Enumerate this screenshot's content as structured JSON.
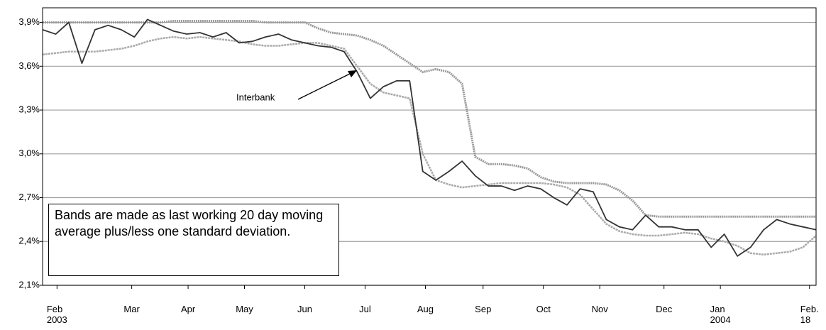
{
  "chart_data": {
    "type": "line",
    "ylim": [
      2.1,
      4.0
    ],
    "yticks": [
      {
        "value": 2.1,
        "label": "2,1%"
      },
      {
        "value": 2.4,
        "label": "2,4%"
      },
      {
        "value": 2.7,
        "label": "2,7%"
      },
      {
        "value": 3.0,
        "label": "3,0%"
      },
      {
        "value": 3.3,
        "label": "3,3%"
      },
      {
        "value": 3.6,
        "label": "3,6%"
      },
      {
        "value": 3.9,
        "label": "3,9%"
      }
    ],
    "xlim": [
      0,
      59
    ],
    "xticks": [
      {
        "value": 1.1,
        "label": "Feb\n2003"
      },
      {
        "value": 6.8,
        "label": "Mar"
      },
      {
        "value": 11.1,
        "label": "Apr"
      },
      {
        "value": 15.4,
        "label": "May"
      },
      {
        "value": 20.0,
        "label": "Jun"
      },
      {
        "value": 24.6,
        "label": "Jul"
      },
      {
        "value": 29.2,
        "label": "Aug"
      },
      {
        "value": 33.6,
        "label": "Sep"
      },
      {
        "value": 38.2,
        "label": "Oct"
      },
      {
        "value": 42.5,
        "label": "Nov"
      },
      {
        "value": 47.4,
        "label": "Dec"
      },
      {
        "value": 51.7,
        "label": "Jan\n2004"
      },
      {
        "value": 58.5,
        "label": "Feb. 18"
      }
    ],
    "grid": true,
    "annotation": "Bands are made as last working 20 day moving average plus/less one standard deviation.",
    "series": [
      {
        "name": "Interbank",
        "color": "#333333",
        "values": [
          3.85,
          3.82,
          3.9,
          3.62,
          3.85,
          3.88,
          3.85,
          3.8,
          3.92,
          3.88,
          3.84,
          3.82,
          3.83,
          3.8,
          3.83,
          3.76,
          3.77,
          3.8,
          3.82,
          3.78,
          3.76,
          3.74,
          3.73,
          3.7,
          3.56,
          3.38,
          3.46,
          3.5,
          3.5,
          2.88,
          2.82,
          2.88,
          2.95,
          2.85,
          2.78,
          2.78,
          2.75,
          2.78,
          2.76,
          2.7,
          2.65,
          2.76,
          2.74,
          2.55,
          2.5,
          2.48,
          2.58,
          2.5,
          2.5,
          2.48,
          2.48,
          2.36,
          2.45,
          2.3,
          2.36,
          2.48,
          2.55,
          2.52,
          2.5,
          2.48
        ]
      },
      {
        "color": "#999999",
        "values": [
          3.9,
          3.9,
          3.9,
          3.9,
          3.9,
          3.9,
          3.9,
          3.9,
          3.9,
          3.9,
          3.91,
          3.91,
          3.91,
          3.91,
          3.91,
          3.91,
          3.91,
          3.9,
          3.9,
          3.9,
          3.9,
          3.86,
          3.83,
          3.82,
          3.81,
          3.78,
          3.74,
          3.68,
          3.62,
          3.56,
          3.58,
          3.56,
          3.48,
          2.98,
          2.93,
          2.93,
          2.92,
          2.9,
          2.84,
          2.81,
          2.8,
          2.8,
          2.8,
          2.79,
          2.75,
          2.68,
          2.58,
          2.57,
          2.57,
          2.57,
          2.57,
          2.57,
          2.57,
          2.57,
          2.57,
          2.57,
          2.57,
          2.57,
          2.57,
          2.57
        ]
      },
      {
        "color": "#aaaaaa",
        "values": [
          3.68,
          3.69,
          3.7,
          3.7,
          3.7,
          3.71,
          3.72,
          3.74,
          3.77,
          3.79,
          3.8,
          3.79,
          3.8,
          3.79,
          3.78,
          3.77,
          3.75,
          3.74,
          3.74,
          3.75,
          3.76,
          3.76,
          3.74,
          3.72,
          3.6,
          3.48,
          3.42,
          3.4,
          3.38,
          3.0,
          2.82,
          2.79,
          2.77,
          2.78,
          2.79,
          2.8,
          2.8,
          2.8,
          2.8,
          2.79,
          2.77,
          2.72,
          2.62,
          2.52,
          2.47,
          2.45,
          2.44,
          2.44,
          2.45,
          2.46,
          2.45,
          2.42,
          2.4,
          2.37,
          2.32,
          2.31,
          2.32,
          2.33,
          2.36,
          2.44
        ]
      }
    ]
  }
}
